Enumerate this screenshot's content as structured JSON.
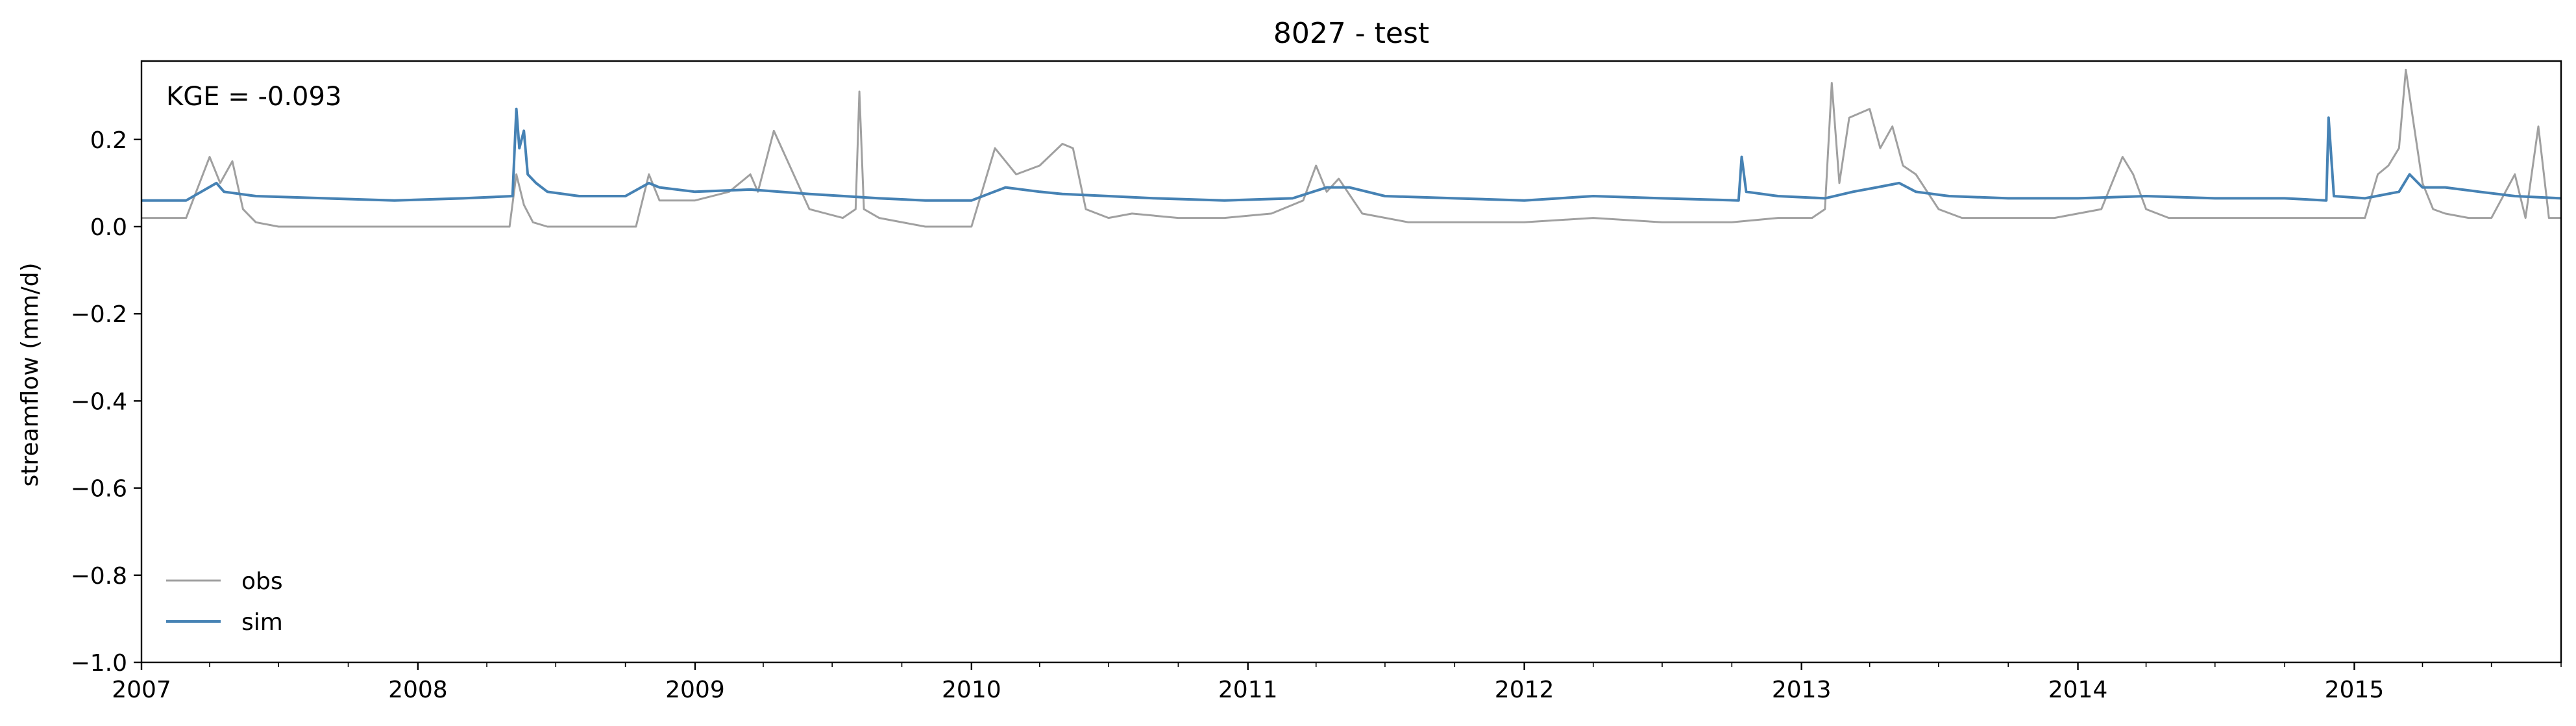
{
  "chart_data": {
    "type": "line",
    "title": "8027 - test",
    "xlabel": "",
    "ylabel": "streamflow (mm/d)",
    "annotation": "KGE = -0.093",
    "xlim": [
      "2007-01-01",
      "2015-10-01"
    ],
    "ylim": [
      -1.0,
      0.38
    ],
    "x_ticks": [
      "2007",
      "2008",
      "2009",
      "2010",
      "2011",
      "2012",
      "2013",
      "2014",
      "2015"
    ],
    "y_ticks": [
      "−1.0",
      "−0.8",
      "−0.6",
      "−0.4",
      "−0.2",
      "0.0",
      "0.2"
    ],
    "y_tick_values": [
      -1.0,
      -0.8,
      -0.6,
      -0.4,
      -0.2,
      0.0,
      0.2
    ],
    "grid": false,
    "legend_position": "lower-left",
    "series": [
      {
        "name": "obs",
        "color": "#a0a0a0",
        "x": [
          "2007-01-01",
          "2007-03-01",
          "2007-04-01",
          "2007-04-15",
          "2007-05-01",
          "2007-05-15",
          "2007-06-01",
          "2007-07-01",
          "2007-09-01",
          "2007-12-01",
          "2008-03-01",
          "2008-05-01",
          "2008-05-10",
          "2008-05-20",
          "2008-06-01",
          "2008-06-20",
          "2008-08-01",
          "2008-10-15",
          "2008-11-01",
          "2008-11-15",
          "2009-01-01",
          "2009-02-15",
          "2009-03-15",
          "2009-03-25",
          "2009-04-15",
          "2009-06-01",
          "2009-07-15",
          "2009-08-01",
          "2009-08-06",
          "2009-08-12",
          "2009-09-01",
          "2009-11-01",
          "2010-01-01",
          "2010-02-01",
          "2010-03-01",
          "2010-04-01",
          "2010-05-01",
          "2010-05-15",
          "2010-06-01",
          "2010-07-01",
          "2010-08-01",
          "2010-10-01",
          "2010-12-01",
          "2011-02-01",
          "2011-03-15",
          "2011-04-01",
          "2011-04-15",
          "2011-05-01",
          "2011-06-01",
          "2011-08-01",
          "2011-10-01",
          "2012-01-01",
          "2012-04-01",
          "2012-07-01",
          "2012-10-01",
          "2012-12-01",
          "2013-01-15",
          "2013-02-01",
          "2013-02-10",
          "2013-02-20",
          "2013-03-05",
          "2013-04-01",
          "2013-04-15",
          "2013-05-01",
          "2013-05-15",
          "2013-06-01",
          "2013-07-01",
          "2013-08-01",
          "2013-10-01",
          "2013-12-01",
          "2014-02-01",
          "2014-03-01",
          "2014-03-15",
          "2014-04-01",
          "2014-05-01",
          "2014-07-01",
          "2014-09-01",
          "2014-11-01",
          "2014-12-15",
          "2015-01-15",
          "2015-02-01",
          "2015-02-15",
          "2015-03-01",
          "2015-03-10",
          "2015-03-20",
          "2015-04-01",
          "2015-04-15",
          "2015-05-01",
          "2015-06-01",
          "2015-07-01",
          "2015-08-01",
          "2015-08-15",
          "2015-09-01",
          "2015-09-15",
          "2015-10-01"
        ],
        "y": [
          0.02,
          0.02,
          0.16,
          0.1,
          0.15,
          0.04,
          0.01,
          0.0,
          0.0,
          0.0,
          0.0,
          0.0,
          0.12,
          0.05,
          0.01,
          0.0,
          0.0,
          0.0,
          0.12,
          0.06,
          0.06,
          0.08,
          0.12,
          0.08,
          0.22,
          0.04,
          0.02,
          0.04,
          0.31,
          0.04,
          0.02,
          0.0,
          0.0,
          0.18,
          0.12,
          0.14,
          0.19,
          0.18,
          0.04,
          0.02,
          0.03,
          0.02,
          0.02,
          0.03,
          0.06,
          0.14,
          0.08,
          0.11,
          0.03,
          0.01,
          0.01,
          0.01,
          0.02,
          0.01,
          0.01,
          0.02,
          0.02,
          0.04,
          0.33,
          0.1,
          0.25,
          0.27,
          0.18,
          0.23,
          0.14,
          0.12,
          0.04,
          0.02,
          0.02,
          0.02,
          0.04,
          0.16,
          0.12,
          0.04,
          0.02,
          0.02,
          0.02,
          0.02,
          0.02,
          0.02,
          0.12,
          0.14,
          0.18,
          0.36,
          0.24,
          0.1,
          0.04,
          0.03,
          0.02,
          0.02,
          0.12,
          0.02,
          0.23,
          0.02,
          0.02
        ]
      },
      {
        "name": "sim",
        "color": "#4682b4",
        "x": [
          "2007-01-01",
          "2007-03-01",
          "2007-04-10",
          "2007-04-20",
          "2007-06-01",
          "2007-09-01",
          "2007-12-01",
          "2008-03-01",
          "2008-05-05",
          "2008-05-10",
          "2008-05-14",
          "2008-05-20",
          "2008-05-25",
          "2008-06-05",
          "2008-06-20",
          "2008-08-01",
          "2008-10-01",
          "2008-11-01",
          "2008-11-15",
          "2009-01-01",
          "2009-03-15",
          "2009-06-01",
          "2009-09-01",
          "2009-11-01",
          "2010-01-01",
          "2010-02-15",
          "2010-04-01",
          "2010-05-01",
          "2010-07-01",
          "2010-09-01",
          "2010-12-01",
          "2011-03-01",
          "2011-04-15",
          "2011-05-15",
          "2011-07-01",
          "2011-10-01",
          "2012-01-01",
          "2012-04-01",
          "2012-07-01",
          "2012-10-10",
          "2012-10-14",
          "2012-10-20",
          "2012-12-01",
          "2013-02-01",
          "2013-03-10",
          "2013-04-10",
          "2013-05-10",
          "2013-06-01",
          "2013-07-15",
          "2013-10-01",
          "2014-01-01",
          "2014-04-01",
          "2014-07-01",
          "2014-10-01",
          "2014-11-25",
          "2014-11-28",
          "2014-12-05",
          "2015-01-15",
          "2015-03-01",
          "2015-03-15",
          "2015-04-01",
          "2015-05-01",
          "2015-06-15",
          "2015-08-01",
          "2015-10-01"
        ],
        "y": [
          0.06,
          0.06,
          0.1,
          0.08,
          0.07,
          0.065,
          0.06,
          0.065,
          0.07,
          0.27,
          0.18,
          0.22,
          0.12,
          0.1,
          0.08,
          0.07,
          0.07,
          0.1,
          0.09,
          0.08,
          0.085,
          0.075,
          0.065,
          0.06,
          0.06,
          0.09,
          0.08,
          0.075,
          0.07,
          0.065,
          0.06,
          0.065,
          0.09,
          0.09,
          0.07,
          0.065,
          0.06,
          0.07,
          0.065,
          0.06,
          0.16,
          0.08,
          0.07,
          0.065,
          0.08,
          0.09,
          0.1,
          0.08,
          0.07,
          0.065,
          0.065,
          0.07,
          0.065,
          0.065,
          0.06,
          0.25,
          0.07,
          0.065,
          0.08,
          0.12,
          0.09,
          0.09,
          0.08,
          0.07,
          0.065
        ]
      }
    ]
  }
}
